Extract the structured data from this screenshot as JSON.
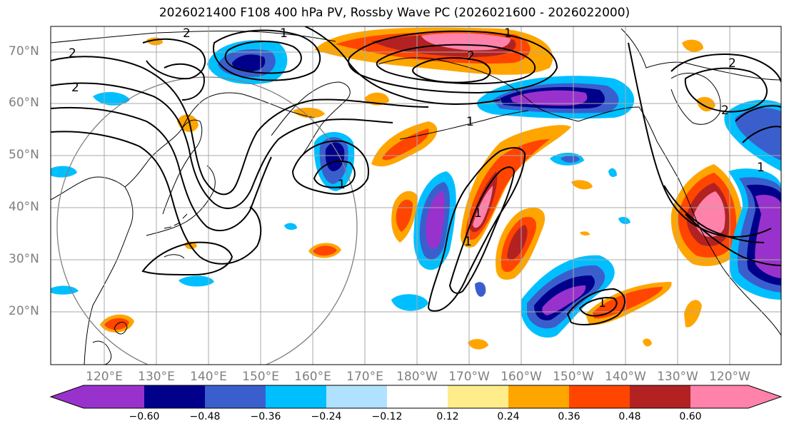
{
  "title": "2026021400 F108 400 hPa PV, Rossby Wave PC (2026021600 - 2026022000)",
  "latitude_labels": [
    "70°N",
    "60°N",
    "50°N",
    "40°N",
    "30°N",
    "20°N"
  ],
  "longitude_labels": [
    "120°E",
    "130°E",
    "140°E",
    "150°E",
    "160°E",
    "170°E",
    "180°W",
    "170°W",
    "160°W",
    "150°W",
    "140°W",
    "130°W",
    "120°W"
  ],
  "contour_labels": [
    "2",
    "2",
    "2",
    "1",
    "1",
    "1",
    "2",
    "2",
    "1",
    "1",
    "2",
    "1",
    "1",
    "1"
  ],
  "colorbar": {
    "tick_labels": [
      "−0.60",
      "−0.48",
      "−0.36",
      "−0.24",
      "−0.12",
      "0.12",
      "0.24",
      "0.36",
      "0.48",
      "0.60"
    ],
    "colors": [
      "#9932cc",
      "#00008b",
      "#3a5fcd",
      "#00bfff",
      "#b0e2ff",
      "#ffffff",
      "#ffec8b",
      "#ffa500",
      "#ff4500",
      "#b22222",
      "#ff82ab"
    ]
  },
  "colors": {
    "strong_negative": "#9932cc",
    "negative": "#00008b",
    "weak_negative": "#00bfff",
    "weak_positive": "#ffa500",
    "positive": "#ff4500",
    "strong_positive": "#ff82ab",
    "grid": "#a9a9a9",
    "axis_label": "#7f7f7f"
  }
}
